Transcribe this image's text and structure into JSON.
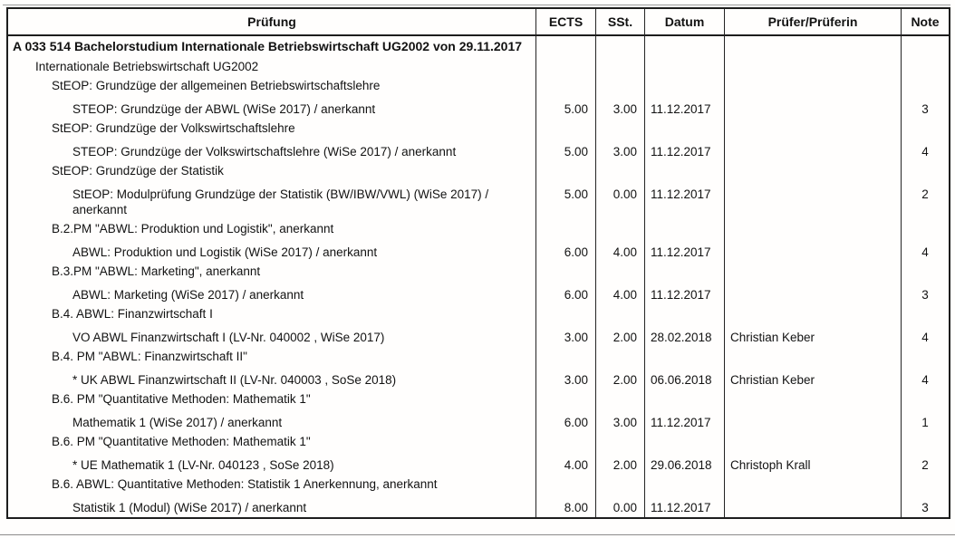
{
  "document": {
    "headers": {
      "pruefung": "Prüfung",
      "ects": "ECTS",
      "sst": "SSt.",
      "datum": "Datum",
      "pruefer": "Prüfer/Prüferin",
      "note": "Note"
    },
    "rows": [
      {
        "type": "program",
        "indent": 0,
        "text": "A 033 514 Bachelorstudium Internationale Betriebswirtschaft UG2002 von 29.11.2017",
        "ects": "",
        "sst": "",
        "datum": "",
        "pruefer": "",
        "note": ""
      },
      {
        "type": "label",
        "indent": 1,
        "text": "Internationale Betriebswirtschaft UG2002",
        "ects": "",
        "sst": "",
        "datum": "",
        "pruefer": "",
        "note": ""
      },
      {
        "type": "label",
        "indent": 2,
        "text": "StEOP: Grundzüge der allgemeinen Betriebswirtschaftslehre",
        "ects": "",
        "sst": "",
        "datum": "",
        "pruefer": "",
        "note": ""
      },
      {
        "type": "course",
        "indent": 3,
        "text": "STEOP: Grundzüge der ABWL (WiSe 2017) / anerkannt",
        "ects": "5.00",
        "sst": "3.00",
        "datum": "11.12.2017",
        "pruefer": "",
        "note": "3"
      },
      {
        "type": "label",
        "indent": 2,
        "text": "StEOP: Grundzüge der Volkswirtschaftslehre",
        "ects": "",
        "sst": "",
        "datum": "",
        "pruefer": "",
        "note": ""
      },
      {
        "type": "course",
        "indent": 3,
        "text": "STEOP: Grundzüge der Volkswirtschaftslehre (WiSe 2017) / anerkannt",
        "ects": "5.00",
        "sst": "3.00",
        "datum": "11.12.2017",
        "pruefer": "",
        "note": "4"
      },
      {
        "type": "label",
        "indent": 2,
        "text": "StEOP: Grundzüge der Statistik",
        "ects": "",
        "sst": "",
        "datum": "",
        "pruefer": "",
        "note": ""
      },
      {
        "type": "course",
        "indent": 3,
        "text": "StEOP: Modulprüfung Grundzüge der Statistik (BW/IBW/VWL) (WiSe 2017) / anerkannt",
        "ects": "5.00",
        "sst": "0.00",
        "datum": "11.12.2017",
        "pruefer": "",
        "note": "2"
      },
      {
        "type": "label",
        "indent": 2,
        "text": "B.2.PM \"ABWL: Produktion und Logistik\", anerkannt",
        "ects": "",
        "sst": "",
        "datum": "",
        "pruefer": "",
        "note": ""
      },
      {
        "type": "course",
        "indent": 3,
        "text": "ABWL: Produktion und Logistik (WiSe 2017) / anerkannt",
        "ects": "6.00",
        "sst": "4.00",
        "datum": "11.12.2017",
        "pruefer": "",
        "note": "4"
      },
      {
        "type": "label",
        "indent": 2,
        "text": "B.3.PM \"ABWL: Marketing\", anerkannt",
        "ects": "",
        "sst": "",
        "datum": "",
        "pruefer": "",
        "note": ""
      },
      {
        "type": "course",
        "indent": 3,
        "text": "ABWL: Marketing (WiSe 2017) / anerkannt",
        "ects": "6.00",
        "sst": "4.00",
        "datum": "11.12.2017",
        "pruefer": "",
        "note": "3"
      },
      {
        "type": "label",
        "indent": 2,
        "text": "B.4. ABWL: Finanzwirtschaft I",
        "ects": "",
        "sst": "",
        "datum": "",
        "pruefer": "",
        "note": ""
      },
      {
        "type": "course",
        "indent": 3,
        "text": "VO ABWL Finanzwirtschaft I (LV-Nr. 040002 , WiSe 2017)",
        "ects": "3.00",
        "sst": "2.00",
        "datum": "28.02.2018",
        "pruefer": "Christian Keber",
        "note": "4"
      },
      {
        "type": "label",
        "indent": 2,
        "text": "B.4. PM \"ABWL: Finanzwirtschaft II\"",
        "ects": "",
        "sst": "",
        "datum": "",
        "pruefer": "",
        "note": ""
      },
      {
        "type": "course",
        "indent": 3,
        "text": "* UK ABWL Finanzwirtschaft II (LV-Nr. 040003 , SoSe 2018)",
        "ects": "3.00",
        "sst": "2.00",
        "datum": "06.06.2018",
        "pruefer": "Christian Keber",
        "note": "4"
      },
      {
        "type": "label",
        "indent": 2,
        "text": "B.6. PM \"Quantitative Methoden: Mathematik 1\"",
        "ects": "",
        "sst": "",
        "datum": "",
        "pruefer": "",
        "note": ""
      },
      {
        "type": "course",
        "indent": 3,
        "text": "Mathematik 1 (WiSe 2017) / anerkannt",
        "ects": "6.00",
        "sst": "3.00",
        "datum": "11.12.2017",
        "pruefer": "",
        "note": "1"
      },
      {
        "type": "label",
        "indent": 2,
        "text": "B.6. PM \"Quantitative Methoden: Mathematik 1\"",
        "ects": "",
        "sst": "",
        "datum": "",
        "pruefer": "",
        "note": ""
      },
      {
        "type": "course",
        "indent": 3,
        "text": "* UE Mathematik 1 (LV-Nr. 040123 , SoSe 2018)",
        "ects": "4.00",
        "sst": "2.00",
        "datum": "29.06.2018",
        "pruefer": "Christoph Krall",
        "note": "2"
      },
      {
        "type": "label",
        "indent": 2,
        "text": "B.6. ABWL: Quantitative Methoden: Statistik 1 Anerkennung, anerkannt",
        "ects": "",
        "sst": "",
        "datum": "",
        "pruefer": "",
        "note": ""
      },
      {
        "type": "course",
        "indent": 3,
        "text": "Statistik 1 (Modul) (WiSe 2017) / anerkannt",
        "ects": "8.00",
        "sst": "0.00",
        "datum": "11.12.2017",
        "pruefer": "",
        "note": "3"
      }
    ]
  }
}
